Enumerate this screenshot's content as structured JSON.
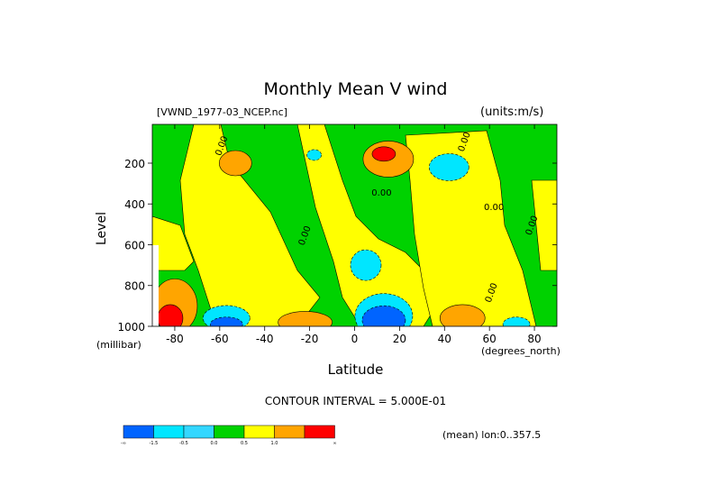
{
  "title": "Monthly Mean V wind",
  "dataset": "[VWND_1977-03_NCEP.nc]",
  "units": "(units:m/s)",
  "chart_data": {
    "type": "heatmap",
    "xlabel": "Latitude",
    "xunit": "(degrees_north)",
    "ylabel": "Level",
    "yunit": "(millibar)",
    "xlim": [
      -90,
      90
    ],
    "ylim": [
      1000,
      10
    ],
    "xticks": [
      -80,
      -60,
      -40,
      -20,
      0,
      20,
      40,
      60,
      80
    ],
    "xtick_labels": [
      "-80",
      "-60",
      "-40",
      "-20",
      "0",
      "20",
      "40",
      "60",
      "80"
    ],
    "yticks": [
      200,
      400,
      600,
      800,
      1000
    ],
    "ytick_labels": [
      "200",
      "400",
      "600",
      "800",
      "1000"
    ],
    "contour_interval_text": "CONTOUR INTERVAL = 5.000E-01",
    "contour_labels": [
      {
        "text": "0.00",
        "lat": -58,
        "level": 120
      },
      {
        "text": "0.00",
        "lat": 12,
        "level": 360
      },
      {
        "text": "0.00",
        "lat": -21,
        "level": 560
      },
      {
        "text": "0.00",
        "lat": 50,
        "level": 100
      },
      {
        "text": "0.00",
        "lat": 62,
        "level": 430
      },
      {
        "text": "0.00",
        "lat": 80,
        "level": 510
      },
      {
        "text": "0.00",
        "lat": 62,
        "level": 840
      }
    ],
    "colorbar": {
      "bins": [
        {
          "color": "#0064ff",
          "label": "-∞"
        },
        {
          "color": "#00e6ff",
          "label": "-1.5"
        },
        {
          "color": "#33d7ff",
          "label": "-0.5"
        },
        {
          "color": "#00d200",
          "label": "0.0"
        },
        {
          "color": "#ffff00",
          "label": "0.5"
        },
        {
          "color": "#ffa500",
          "label": "1.0"
        },
        {
          "color": "#ff0000",
          "label": "∞"
        }
      ]
    },
    "regions": [
      {
        "color": "#ffff00",
        "shape": "yellow_band_sh",
        "value_range": "0 to 0.5"
      },
      {
        "color": "#ffff00",
        "shape": "yellow_band_eq",
        "value_range": "0 to 0.5"
      },
      {
        "color": "#ffff00",
        "shape": "yellow_band_nh",
        "value_range": "0 to 0.5"
      },
      {
        "color": "#ffa500",
        "lat": -53,
        "level": 200,
        "value_range": "0.5 to 1.0"
      },
      {
        "color": "#ffa500",
        "lat": 15,
        "level": 180,
        "value_range": "0.5 to 1.0"
      },
      {
        "color": "#ff0000",
        "lat": 13,
        "level": 155,
        "value_range": "> 1.0"
      },
      {
        "color": "#00e6ff",
        "lat": 42,
        "level": 220,
        "value_range": "-1.5 to -0.5"
      },
      {
        "color": "#00e6ff",
        "lat": -18,
        "level": 160,
        "value_range": "-1.5 to -0.5"
      },
      {
        "color": "#00e6ff",
        "lat": 5,
        "level": 700,
        "value_range": "-1.5 to -0.5"
      },
      {
        "color": "#ffa500",
        "lat": -80,
        "level": 900,
        "value_range": "0.5 to 1.0"
      },
      {
        "color": "#ff0000",
        "lat": -82,
        "level": 960,
        "value_range": "> 1.0"
      },
      {
        "color": "#00e6ff",
        "lat": -57,
        "level": 960,
        "value_range": "-1.5 to -0.5"
      },
      {
        "color": "#0064ff",
        "lat": -57,
        "level": 990,
        "value_range": "< -1.5"
      },
      {
        "color": "#ffa500",
        "lat": -22,
        "level": 980,
        "value_range": "0.5 to 1.0"
      },
      {
        "color": "#00e6ff",
        "lat": 13,
        "level": 950,
        "value_range": "-1.5 to -0.5"
      },
      {
        "color": "#0064ff",
        "lat": 13,
        "level": 970,
        "value_range": "< -1.5"
      },
      {
        "color": "#ffa500",
        "lat": 48,
        "level": 960,
        "value_range": "0.5 to 1.0"
      },
      {
        "color": "#00e6ff",
        "lat": 72,
        "level": 990,
        "value_range": "-1.5 to -0.5"
      }
    ]
  },
  "mean_info": "(mean) lon:0..357.5"
}
